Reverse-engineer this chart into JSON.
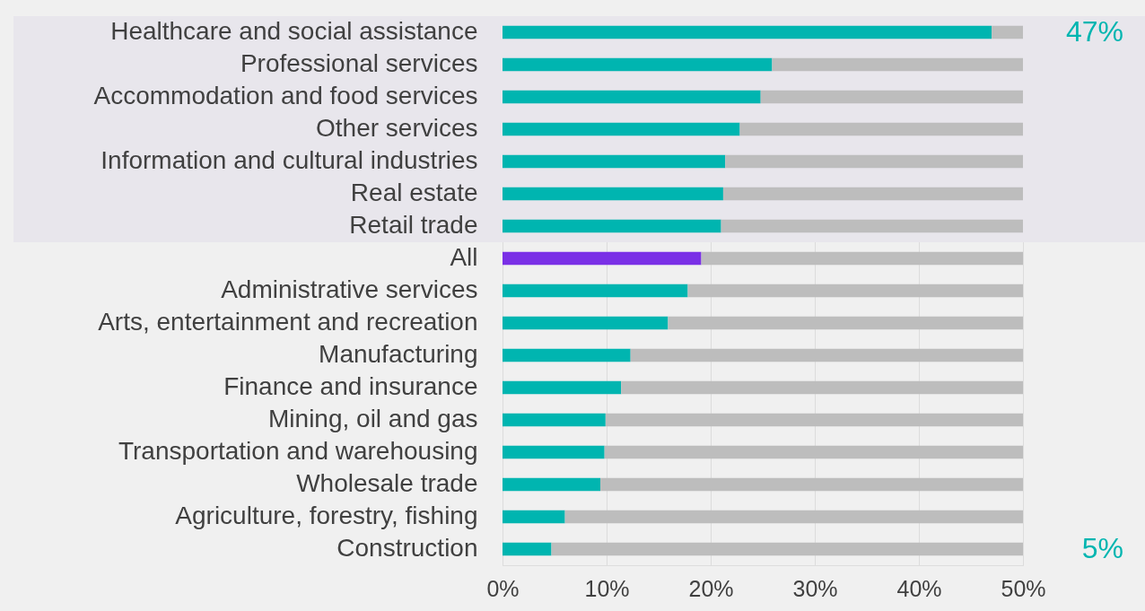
{
  "chart_data": {
    "type": "bar",
    "orientation": "horizontal",
    "stacked": true,
    "categories": [
      "Healthcare and social assistance",
      "Professional services",
      "Accommodation and food services",
      "Other services",
      "Information and cultural industries",
      "Real estate",
      "Retail trade",
      "All",
      "Administrative services",
      "Arts, entertainment and recreation",
      "Manufacturing",
      "Finance and insurance",
      "Mining, oil and gas",
      "Transportation and warehousing",
      "Wholesale trade",
      "Agriculture, forestry, fishing",
      "Construction"
    ],
    "series": [
      {
        "colors": [
          "#00b5b0",
          "#00b5b0",
          "#00b5b0",
          "#00b5b0",
          "#00b5b0",
          "#00b5b0",
          "#00b5b0",
          "#7a30e6",
          "#00b5b0",
          "#00b5b0",
          "#00b5b0",
          "#00b5b0",
          "#00b5b0",
          "#00b5b0",
          "#00b5b0",
          "#00b5b0",
          "#00b5b0"
        ],
        "values": [
          47,
          25.9,
          24.8,
          22.8,
          21.4,
          21.2,
          21,
          19.1,
          17.8,
          15.9,
          12.3,
          11.4,
          9.9,
          9.8,
          9.4,
          6,
          4.7
        ],
        "value_labels": [
          "47%",
          null,
          null,
          null,
          null,
          null,
          null,
          null,
          null,
          null,
          null,
          null,
          null,
          null,
          null,
          null,
          "5%"
        ]
      },
      {
        "color": "#bdbdbd",
        "values": [
          3,
          24.1,
          25.2,
          27.2,
          28.6,
          28.8,
          29,
          30.9,
          32.2,
          34.1,
          37.7,
          38.6,
          40.1,
          40.2,
          40.6,
          44,
          45.3
        ]
      }
    ],
    "xlim": [
      0,
      50
    ],
    "xticks": [
      {
        "value": 0,
        "label": "0%"
      },
      {
        "value": 10,
        "label": "10%"
      },
      {
        "value": 20,
        "label": "20%"
      },
      {
        "value": 30,
        "label": "30%"
      },
      {
        "value": 40,
        "label": "40%"
      },
      {
        "value": 50,
        "label": "50%"
      }
    ],
    "grid": "x",
    "bands": [
      {
        "axis": "y",
        "from": "Healthcare and social assistance",
        "to": "Retail trade",
        "color": "#e8e6ec"
      }
    ]
  }
}
